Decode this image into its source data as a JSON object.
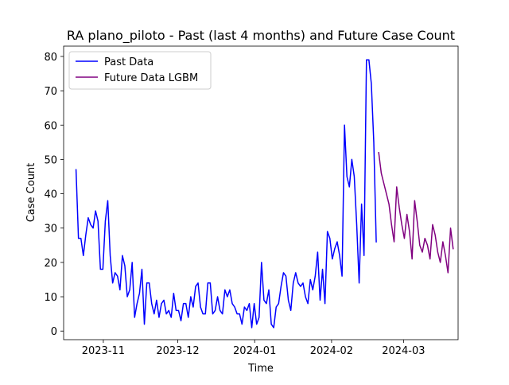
{
  "chart_data": {
    "type": "line",
    "title": "RA plano_piloto - Past (last 4 months) and Future Case Count",
    "xlabel": "Time",
    "ylabel": "Case Count",
    "xlim": [
      "2023-10-16",
      "2024-03-23"
    ],
    "ylim": [
      -2.5,
      83.0
    ],
    "grid": false,
    "legend_position": "upper-left",
    "x_ticks": [
      {
        "date": "2023-11-01",
        "label": "2023-11"
      },
      {
        "date": "2023-12-01",
        "label": "2023-12"
      },
      {
        "date": "2024-01-01",
        "label": "2024-01"
      },
      {
        "date": "2024-02-01",
        "label": "2024-02"
      },
      {
        "date": "2024-03-01",
        "label": "2024-03"
      }
    ],
    "y_ticks": [
      0,
      10,
      20,
      30,
      40,
      50,
      60,
      70,
      80
    ],
    "series": [
      {
        "name": "Past Data",
        "color": "#0000ff",
        "x_start": "2023-10-21",
        "x_end": "2024-02-19",
        "values": [
          47,
          27,
          27,
          22,
          28,
          33,
          31,
          30,
          35,
          32,
          18,
          18,
          32,
          38,
          22,
          14,
          17,
          16,
          12,
          22,
          19,
          10,
          12,
          20,
          4,
          8,
          11,
          18,
          2,
          14,
          14,
          8,
          5,
          9,
          4,
          8,
          9,
          5,
          6,
          4,
          11,
          6,
          6,
          3,
          8,
          8,
          4,
          10,
          7,
          13,
          14,
          7,
          5,
          5,
          14,
          14,
          5,
          6,
          10,
          6,
          5,
          12,
          10,
          12,
          8,
          7,
          5,
          5,
          2,
          7,
          6,
          8,
          1,
          8,
          2,
          4,
          20,
          9,
          8,
          12,
          2,
          1,
          7,
          8,
          13,
          17,
          16,
          9,
          6,
          14,
          17,
          14,
          13,
          14,
          10,
          8,
          15,
          12,
          16,
          23,
          9,
          18,
          8,
          29,
          27,
          21,
          24,
          26,
          22,
          16,
          60,
          45,
          42,
          50,
          45,
          31,
          14,
          37,
          22,
          79,
          79,
          72,
          55,
          26
        ]
      },
      {
        "name": "Future Data LGBM",
        "color": "#800080",
        "x_start": "2024-02-20",
        "x_end": "2024-03-21",
        "values": [
          52,
          46,
          43,
          40,
          37,
          31,
          26,
          42,
          36,
          31,
          27,
          34,
          29,
          21,
          38,
          32,
          25,
          23,
          27,
          25,
          21,
          31,
          28,
          23,
          20,
          26,
          22,
          17,
          30,
          24
        ]
      }
    ]
  }
}
